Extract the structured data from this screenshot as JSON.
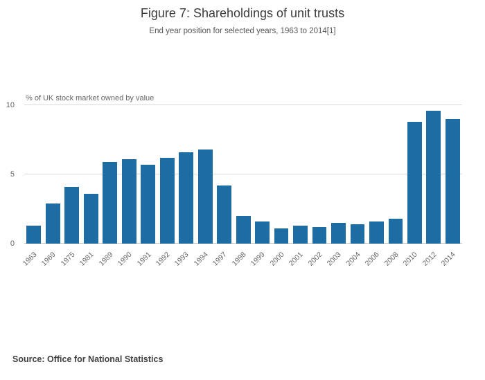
{
  "header": {
    "title": "Figure 7: Shareholdings of unit trusts",
    "subtitle": "End year position for selected years, 1963 to 2014[1]"
  },
  "chart_data": {
    "type": "bar",
    "title": "Figure 7: Shareholdings of unit trusts",
    "subtitle": "End year position for selected years, 1963 to 2014[1]",
    "ylabel": "% of UK stock market owned by value",
    "xlabel": "",
    "categories": [
      "1963",
      "1969",
      "1975",
      "1981",
      "1989",
      "1990",
      "1991",
      "1992",
      "1993",
      "1994",
      "1997",
      "1998",
      "1999",
      "2000",
      "2001",
      "2002",
      "2003",
      "2004",
      "2006",
      "2008",
      "2010",
      "2012",
      "2014"
    ],
    "values": [
      1.3,
      2.9,
      4.1,
      3.6,
      5.9,
      6.1,
      5.7,
      6.2,
      6.6,
      6.8,
      4.2,
      2.0,
      1.6,
      1.1,
      1.3,
      1.2,
      1.5,
      1.4,
      1.6,
      1.8,
      8.8,
      9.6,
      9.0
    ],
    "ylim": [
      0,
      10
    ],
    "yticks": [
      0,
      5,
      10
    ],
    "grid": true,
    "legend": false,
    "bar_color": "#1d6ca3"
  },
  "footer": {
    "source": "Source: Office for National Statistics"
  }
}
